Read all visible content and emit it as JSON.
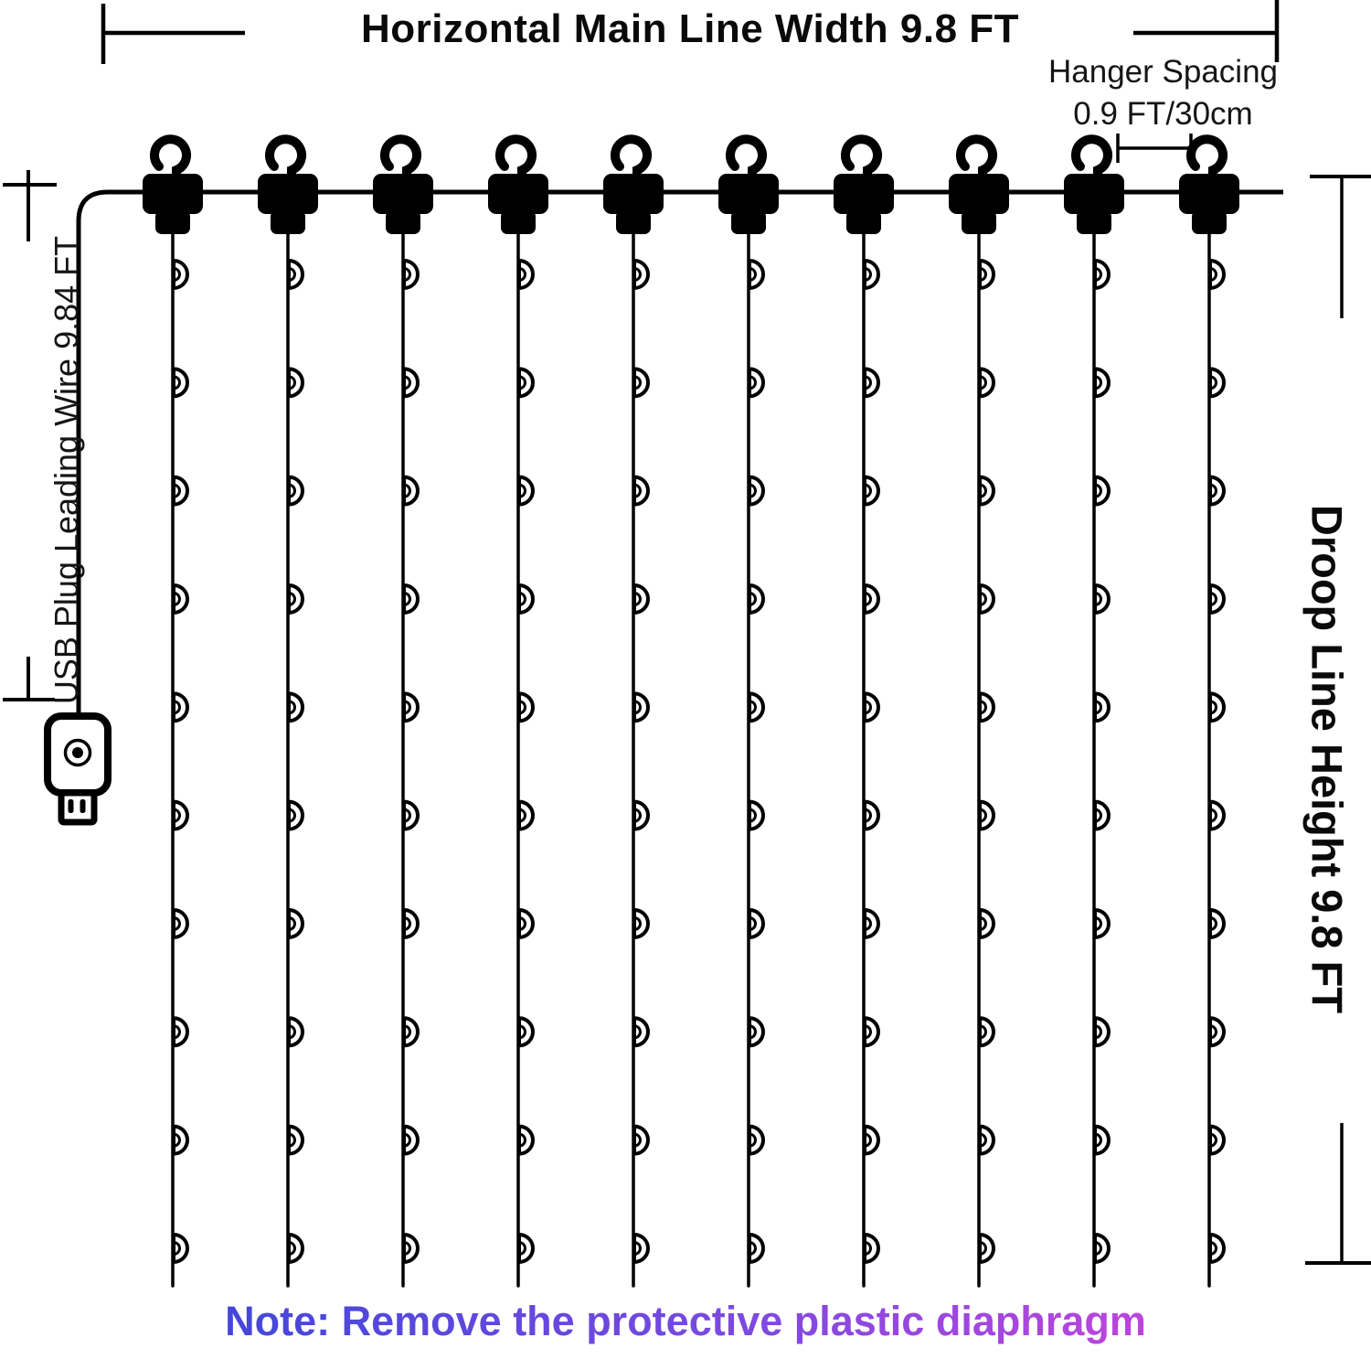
{
  "title": "Horizontal Main Line Width 9.8 FT",
  "hanger_spacing": {
    "line1": "Hanger Spacing",
    "line2": "0.9 FT/30cm"
  },
  "usb_wire_label": "USB Plug Leading Wire 9.84 FT",
  "droop_label": "Droop Line Height 9.8 FT",
  "note": "Note: Remove the protective plastic diaphragm",
  "structure": {
    "hook_count": 10,
    "drop_line_count": 10,
    "leds_per_drop_line": 10
  },
  "colors": {
    "line_color": "#000000",
    "note_gradient_start": "#4347DA",
    "note_gradient_mid": "#7B49E0",
    "note_gradient_end": "#BC45DC"
  }
}
